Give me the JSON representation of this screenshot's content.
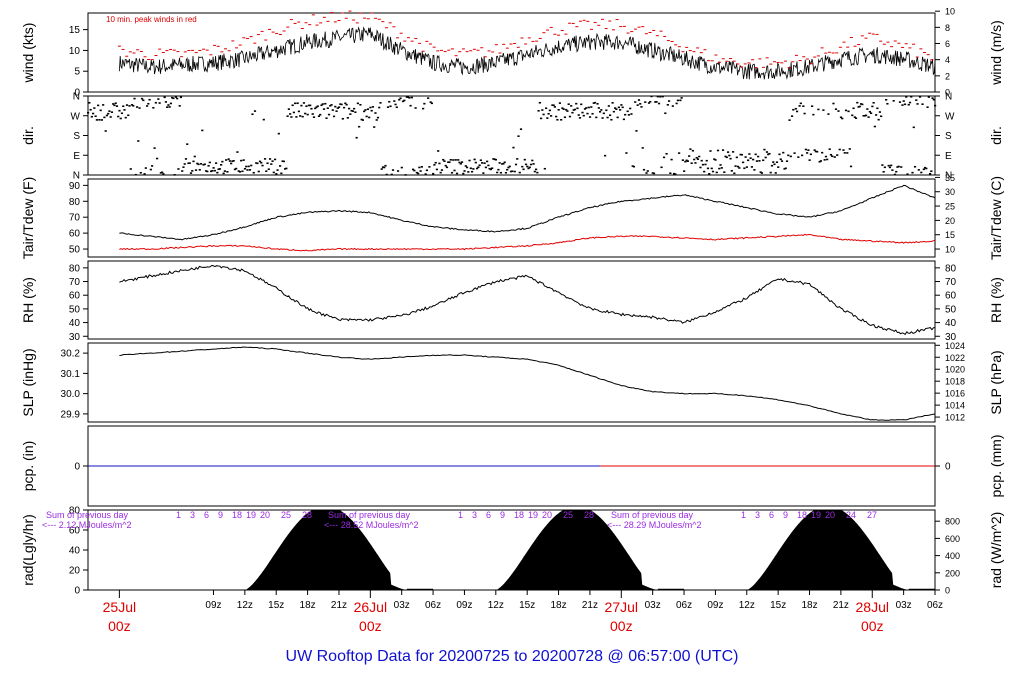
{
  "title": "UW Rooftop Data for 20200725  to  20200728 @ 06:57:00  (UTC)",
  "chart_data": [
    {
      "panel": "wind",
      "type": "line",
      "ylabel": "wind (kts)",
      "ylabel_right": "wind (m/s)",
      "ylim": [
        0,
        19
      ],
      "yticks": [
        0,
        5,
        10,
        15
      ],
      "yticks_right": [
        0,
        2,
        4,
        6,
        8,
        10
      ],
      "annotation": "10 min. peak winds in red",
      "x_hours": [
        0,
        3,
        6,
        9,
        12,
        15,
        18,
        21,
        24,
        27,
        30,
        33,
        36,
        39,
        42,
        45,
        48,
        51,
        54,
        57,
        60,
        63,
        66,
        69,
        72,
        75,
        78
      ],
      "series": [
        {
          "color": "#000000",
          "values": [
            7,
            6,
            6.5,
            7,
            8,
            10,
            12,
            13,
            14,
            10,
            7,
            6,
            7,
            9,
            11,
            12,
            12,
            10,
            8,
            6,
            5,
            5,
            6,
            8,
            9,
            8,
            6
          ]
        },
        {
          "color": "#e00000",
          "values": [
            10,
            9,
            9,
            10,
            12,
            15,
            17,
            18,
            18,
            14,
            10,
            9,
            10,
            13,
            15,
            16,
            16,
            14,
            11,
            8,
            7,
            7,
            8,
            11,
            13,
            11,
            8
          ]
        }
      ]
    },
    {
      "panel": "direction",
      "type": "scatter",
      "ylabel": "dir.",
      "ylabel_right": "dir.",
      "ycategories": [
        "N",
        "E",
        "S",
        "W",
        "N"
      ]
    },
    {
      "panel": "temperature",
      "type": "line",
      "ylabel": "Tair/Tdew (F)",
      "ylabel_right": "Tair/Tdew (C)",
      "ylim": [
        45,
        94
      ],
      "yticks": [
        50,
        60,
        70,
        80,
        90
      ],
      "yticks_right": [
        10,
        15,
        20,
        25,
        30,
        35
      ],
      "x_hours": [
        0,
        3,
        6,
        9,
        12,
        15,
        18,
        21,
        24,
        27,
        30,
        33,
        36,
        39,
        42,
        45,
        48,
        51,
        54,
        57,
        60,
        63,
        66,
        69,
        72,
        75,
        78
      ],
      "series": [
        {
          "color": "#000000",
          "values": [
            60,
            58,
            56,
            59,
            64,
            70,
            73,
            74,
            73,
            68,
            64,
            62,
            61,
            63,
            70,
            76,
            80,
            82,
            84,
            80,
            76,
            72,
            70,
            74,
            82,
            90,
            82
          ]
        },
        {
          "color": "#e00000",
          "values": [
            50,
            50,
            51,
            52,
            52,
            50,
            49,
            50,
            50,
            50,
            50,
            50,
            51,
            52,
            54,
            57,
            58,
            58,
            57,
            56,
            57,
            58,
            59,
            56,
            55,
            54,
            55
          ]
        }
      ]
    },
    {
      "panel": "rh",
      "type": "line",
      "ylabel": "RH (%)",
      "ylabel_right": "RH (%)",
      "ylim": [
        28,
        85
      ],
      "yticks": [
        30,
        40,
        50,
        60,
        70,
        80
      ],
      "x_hours": [
        0,
        3,
        6,
        9,
        12,
        15,
        18,
        21,
        24,
        27,
        30,
        33,
        36,
        39,
        42,
        45,
        48,
        51,
        54,
        57,
        60,
        63,
        66,
        69,
        72,
        75,
        78
      ],
      "values": [
        70,
        74,
        78,
        82,
        78,
        65,
        50,
        42,
        42,
        45,
        52,
        62,
        70,
        74,
        62,
        50,
        46,
        44,
        40,
        48,
        58,
        72,
        68,
        50,
        38,
        32,
        36
      ]
    },
    {
      "panel": "slp",
      "type": "line",
      "ylabel": "SLP (inHg)",
      "ylabel_right": "SLP (hPa)",
      "ylim": [
        29.86,
        30.25
      ],
      "yticks": [
        29.9,
        30.0,
        30.1,
        30.2
      ],
      "yticks_right": [
        1012,
        1014,
        1016,
        1018,
        1020,
        1022,
        1024
      ],
      "x_hours": [
        0,
        3,
        6,
        9,
        12,
        15,
        18,
        21,
        24,
        27,
        30,
        33,
        36,
        39,
        42,
        45,
        48,
        51,
        54,
        57,
        60,
        63,
        66,
        69,
        72,
        75,
        78
      ],
      "values": [
        30.19,
        30.2,
        30.21,
        30.22,
        30.23,
        30.22,
        30.2,
        30.18,
        30.17,
        30.18,
        30.19,
        30.19,
        30.18,
        30.17,
        30.14,
        30.09,
        30.04,
        30.01,
        30.0,
        30.0,
        29.99,
        29.97,
        29.94,
        29.9,
        29.87,
        29.87,
        29.9
      ]
    },
    {
      "panel": "precip",
      "type": "line",
      "ylabel": "pcp. (in)",
      "ylabel_right": "pcp. (mm)",
      "yticks": [
        0
      ],
      "yticks_right": [
        0
      ],
      "value": 0
    },
    {
      "panel": "radiation",
      "type": "area",
      "ylabel": "rad(Lgly/hr)",
      "ylabel_right": "rad (W/m^2)",
      "ylim": [
        0,
        80
      ],
      "yticks": [
        0,
        20,
        40,
        60,
        80
      ],
      "yticks_right": [
        0,
        200,
        400,
        600,
        800
      ],
      "day_peaks": [
        84,
        84,
        84
      ],
      "daily_sums": [
        {
          "label": "Sum of previous day",
          "value": "<--- 2.12 MJoules/m^2"
        },
        {
          "label": "Sum of previous day",
          "value": "<--- 28.52 MJoules/m^2"
        },
        {
          "label": "Sum of previous day",
          "value": "<--- 28.29 MJoules/m^2"
        }
      ],
      "hour_marks": [
        [
          "1",
          "3",
          "6",
          "9",
          "18",
          "19",
          "20",
          "25",
          "28"
        ],
        [
          "1",
          "3",
          "6",
          "9",
          "18",
          "19",
          "20",
          "25",
          "28"
        ],
        [
          "1",
          "3",
          "6",
          "9",
          "18",
          "19",
          "20",
          "24",
          "27"
        ]
      ]
    },
    {
      "panel": "time-axis",
      "hour_ticks": [
        "09z",
        "12z",
        "15z",
        "18z",
        "21z",
        "03z",
        "06z",
        "09z",
        "12z",
        "15z",
        "18z",
        "21z",
        "03z",
        "06z",
        "09z",
        "12z",
        "15z",
        "18z",
        "21z",
        "03z",
        "06z"
      ],
      "day_labels": [
        {
          "date": "25Jul",
          "time": "00z"
        },
        {
          "date": "26Jul",
          "time": "00z"
        },
        {
          "date": "27Jul",
          "time": "00z"
        },
        {
          "date": "28Jul",
          "time": "00z"
        }
      ]
    }
  ]
}
